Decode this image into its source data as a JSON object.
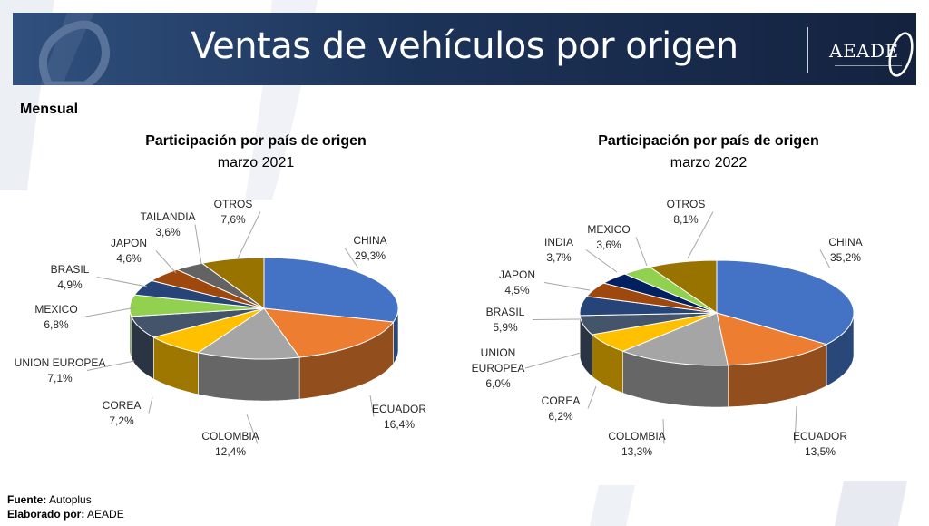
{
  "header": {
    "title": "Ventas de vehículos por origen",
    "logo_text": "AEADE"
  },
  "section_label": "Mensual",
  "footer": {
    "source_label": "Fuente:",
    "source_value": "Autoplus",
    "author_label": "Elaborado por:",
    "author_value": "AEADE"
  },
  "colors": {
    "banner": "#1c3358",
    "CHINA": "#4472c4",
    "ECUADOR": "#ed7d31",
    "COLOMBIA": "#a5a5a5",
    "COREA": "#ffc000",
    "UNION EUROPEA": "#44546a",
    "MEXICO": "#92d050",
    "BRASIL": "#264478",
    "JAPON": "#9e480e",
    "TAILANDIA": "#636363",
    "INDIA": "#002060",
    "OTROS": "#997300"
  },
  "chart_data": [
    {
      "type": "pie",
      "title": "Participación por país de origen",
      "subtitle": "marzo 2021",
      "slices": [
        {
          "label": "CHINA",
          "value": 29.3,
          "text": "29,3%"
        },
        {
          "label": "ECUADOR",
          "value": 16.4,
          "text": "16,4%"
        },
        {
          "label": "COLOMBIA",
          "value": 12.4,
          "text": "12,4%"
        },
        {
          "label": "COREA",
          "value": 7.2,
          "text": "7,2%"
        },
        {
          "label": "UNION EUROPEA",
          "value": 7.1,
          "text": "7,1%"
        },
        {
          "label": "MEXICO",
          "value": 6.8,
          "text": "6,8%"
        },
        {
          "label": "BRASIL",
          "value": 4.9,
          "text": "4,9%"
        },
        {
          "label": "JAPON",
          "value": 4.6,
          "text": "4,6%"
        },
        {
          "label": "TAILANDIA",
          "value": 3.6,
          "text": "3,6%"
        },
        {
          "label": "OTROS",
          "value": 7.6,
          "text": "7,6%"
        }
      ]
    },
    {
      "type": "pie",
      "title": "Participación por país de origen",
      "subtitle": "marzo 2022",
      "slices": [
        {
          "label": "CHINA",
          "value": 35.2,
          "text": "35,2%"
        },
        {
          "label": "ECUADOR",
          "value": 13.5,
          "text": "13,5%"
        },
        {
          "label": "COLOMBIA",
          "value": 13.3,
          "text": "13,3%"
        },
        {
          "label": "COREA",
          "value": 6.2,
          "text": "6,2%"
        },
        {
          "label": "UNION EUROPEA",
          "value": 6.0,
          "text": "6,0%"
        },
        {
          "label": "BRASIL",
          "value": 5.9,
          "text": "5,9%"
        },
        {
          "label": "JAPON",
          "value": 4.5,
          "text": "4,5%"
        },
        {
          "label": "INDIA",
          "value": 3.7,
          "text": "3,7%"
        },
        {
          "label": "MEXICO",
          "value": 3.6,
          "text": "3,6%"
        },
        {
          "label": "OTROS",
          "value": 8.1,
          "text": "8,1%"
        }
      ]
    }
  ]
}
